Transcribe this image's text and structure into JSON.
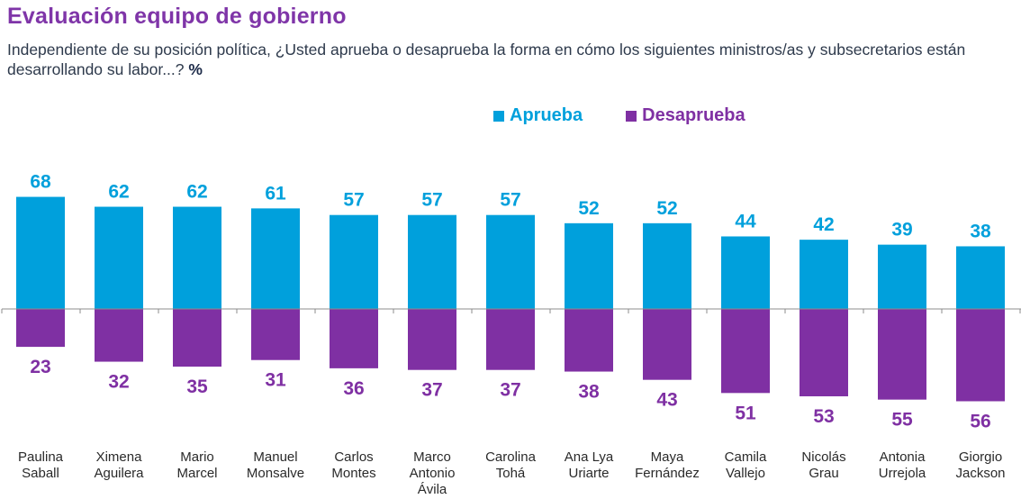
{
  "header": {
    "title": "Evaluación equipo de gobierno",
    "subtitle": "Independiente de su posición política, ¿Usted aprueba o desaprueba la forma en cómo los siguientes ministros/as y subsecretarios están desarrollando su labor...?",
    "subtitle_unit": "%"
  },
  "colors": {
    "aprueba": "#00a0dc",
    "desaprueba": "#7f30a3",
    "axis": "#8c8c8c"
  },
  "chart_data": {
    "type": "bar",
    "title": "Evaluación equipo de gobierno",
    "xlabel": "",
    "ylabel": "%",
    "legend_position": "top-right",
    "grid": false,
    "categories": [
      [
        "Paulina",
        "Saball"
      ],
      [
        "Ximena",
        "Aguilera"
      ],
      [
        "Mario",
        "Marcel"
      ],
      [
        "Manuel",
        "Monsalve"
      ],
      [
        "Carlos",
        "Montes"
      ],
      [
        "Marco",
        "Antonio",
        "Ávila"
      ],
      [
        "Carolina",
        "Tohá"
      ],
      [
        "Ana Lya",
        "Uriarte"
      ],
      [
        "Maya",
        "Fernández"
      ],
      [
        "Camila",
        "Vallejo"
      ],
      [
        "Nicolás",
        "Grau"
      ],
      [
        "Antonia",
        "Urrejola"
      ],
      [
        "Giorgio",
        "Jackson"
      ]
    ],
    "series": [
      {
        "name": "Aprueba",
        "direction": "up",
        "values": [
          68,
          62,
          62,
          61,
          57,
          57,
          57,
          52,
          52,
          44,
          42,
          39,
          38
        ]
      },
      {
        "name": "Desaprueba",
        "direction": "down",
        "values": [
          23,
          32,
          35,
          31,
          36,
          37,
          37,
          38,
          43,
          51,
          53,
          55,
          56
        ]
      }
    ],
    "ylim": [
      -56,
      68
    ]
  }
}
